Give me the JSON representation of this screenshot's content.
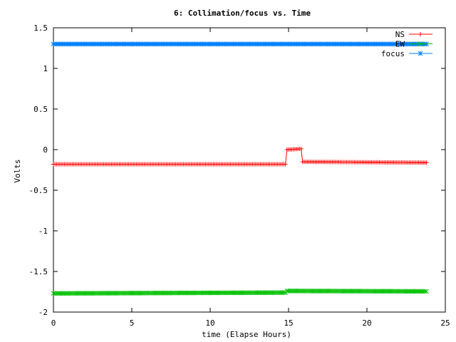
{
  "chart_data": {
    "type": "line",
    "title": "6: Collimation/focus vs. Time",
    "xlabel": "time (Elapse Hours)",
    "ylabel": "Volts",
    "xlim": [
      0,
      25
    ],
    "ylim": [
      -2,
      1.5
    ],
    "x_ticks": [
      0,
      5,
      10,
      15,
      20,
      25
    ],
    "x_tick_labels": [
      "0",
      "5",
      "10",
      "15",
      "20",
      "25"
    ],
    "y_ticks": [
      1.5,
      1,
      0.5,
      0,
      -0.5,
      -1,
      -1.5,
      -2
    ],
    "y_tick_labels": [
      "1.5",
      "1",
      "0.5",
      "0",
      "-0.5",
      "-1",
      "-1.5",
      "-2"
    ],
    "grid": false,
    "legend_position": "top-right",
    "x_step_hours": 0.1,
    "series": [
      {
        "name": "NS",
        "color": "#ff0000",
        "marker": "plus",
        "segments": [
          {
            "x_start": 0.0,
            "x_end": 14.8,
            "y_start": -0.18,
            "y_end": -0.18
          },
          {
            "x_start": 14.9,
            "x_end": 15.8,
            "y_start": 0.0,
            "y_end": 0.01
          },
          {
            "x_start": 15.9,
            "x_end": 23.8,
            "y_start": -0.15,
            "y_end": -0.16
          }
        ]
      },
      {
        "name": "EW",
        "color": "#00c000",
        "marker": "x",
        "segments": [
          {
            "x_start": 0.0,
            "x_end": 14.8,
            "y_start": -1.77,
            "y_end": -1.76
          },
          {
            "x_start": 14.9,
            "x_end": 23.8,
            "y_start": -1.74,
            "y_end": -1.745
          }
        ]
      },
      {
        "name": "focus",
        "color": "#0080ff",
        "marker": "star",
        "segments": [
          {
            "x_start": 0.0,
            "x_end": 23.8,
            "y_start": 1.3,
            "y_end": 1.3
          }
        ]
      }
    ]
  }
}
